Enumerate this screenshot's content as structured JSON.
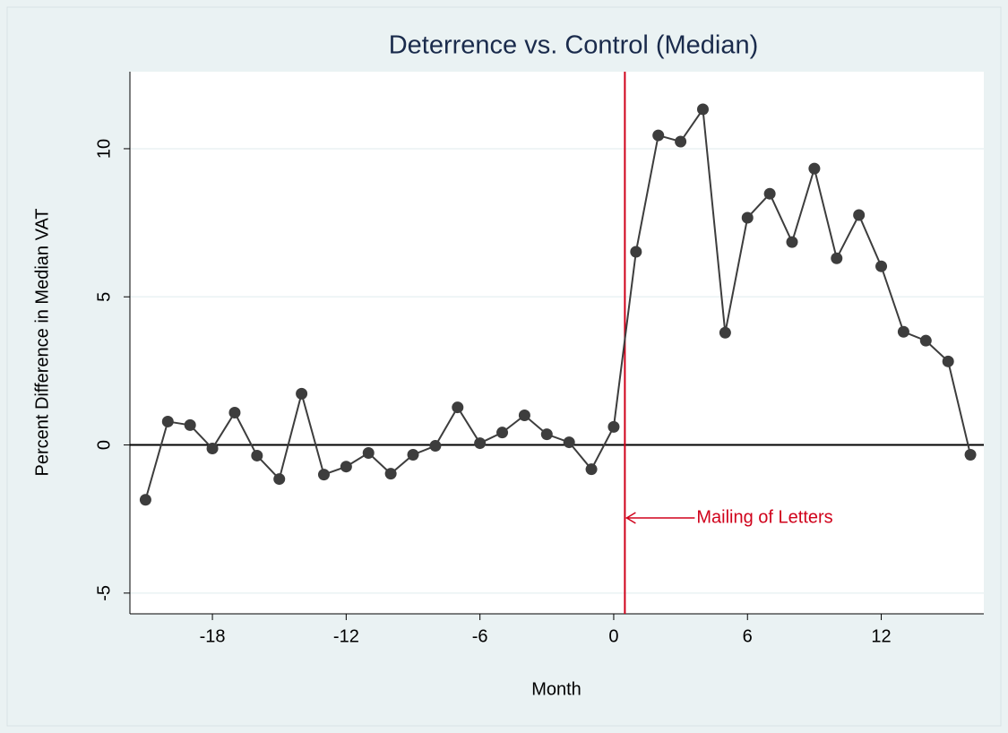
{
  "chart_data": {
    "type": "line",
    "title": "Deterrence vs. Control (Median)",
    "xlabel": "Month",
    "ylabel": "Percent Difference in Median VAT",
    "x": [
      -21,
      -20,
      -19,
      -18,
      -17,
      -16,
      -15,
      -14,
      -13,
      -12,
      -11,
      -10,
      -9,
      -8,
      -7,
      -6,
      -5,
      -4,
      -3,
      -2,
      -1,
      0,
      1,
      2,
      3,
      4,
      5,
      6,
      7,
      8,
      9,
      10,
      11,
      12,
      13,
      14,
      15,
      16
    ],
    "series": [
      {
        "color": "#3d3d3d",
        "values": [
          -1.85,
          0.79,
          0.67,
          -0.12,
          1.09,
          -0.36,
          -1.15,
          1.73,
          -1.0,
          -0.73,
          -0.27,
          -0.97,
          -0.33,
          -0.03,
          1.27,
          0.06,
          0.42,
          1.0,
          0.36,
          0.09,
          -0.82,
          0.61,
          6.52,
          10.45,
          10.24,
          11.33,
          3.79,
          7.67,
          8.48,
          6.85,
          9.33,
          6.3,
          7.76,
          6.03,
          3.82,
          3.52,
          2.82,
          -0.33
        ]
      }
    ],
    "xlim": [
      -21.7,
      16.6
    ],
    "xticks": [
      -18,
      -12,
      -6,
      0,
      6,
      12
    ],
    "ylim": [
      -5.7,
      12.6
    ],
    "yticks": [
      -5,
      0,
      5,
      10
    ],
    "grid": true,
    "hline": 0,
    "vline": 0.5,
    "vline_color": "#d0021b",
    "annotation": "Mailing of Letters"
  }
}
